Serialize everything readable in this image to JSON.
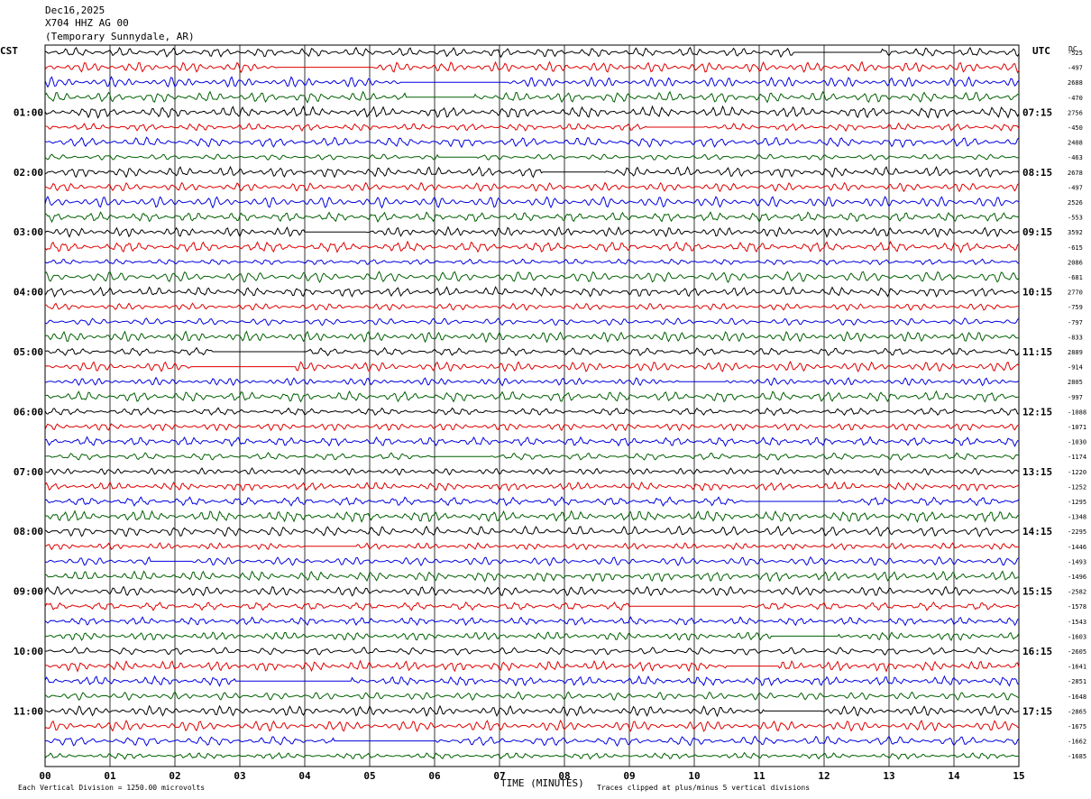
{
  "header": {
    "date": "Dec16,2025",
    "station": "X704 HHZ AG 00",
    "location": "(Temporary Sunnydale, AR)"
  },
  "left_tz": "CST",
  "right_tz": "UTC",
  "dc_label": "DC",
  "footer": {
    "scale_note": "Each Vertical Division = 1250.00 microvolts",
    "clip_note": "Traces clipped at plus/minus 5 vertical divisions"
  },
  "chart_data": {
    "type": "line",
    "title": "X704 HHZ AG 00",
    "xlabel": "TIME (MINUTES)",
    "ylabel": "",
    "x_ticks": [
      "00",
      "01",
      "02",
      "03",
      "04",
      "05",
      "06",
      "07",
      "08",
      "09",
      "10",
      "11",
      "12",
      "13",
      "14",
      "15"
    ],
    "xlim": [
      0,
      15
    ],
    "trace_colors": [
      "#000000",
      "#e00000",
      "#0000e0",
      "#006000"
    ],
    "left_time_labels": [
      "01:00",
      "02:00",
      "03:00",
      "04:00",
      "05:00",
      "06:00",
      "07:00",
      "08:00",
      "09:00",
      "10:00",
      "11:00"
    ],
    "right_time_labels": [
      "07:15",
      "08:15",
      "09:15",
      "10:15",
      "11:15",
      "12:15",
      "13:15",
      "14:15",
      "15:15",
      "16:15",
      "17:15"
    ],
    "label_trace_indices": [
      4,
      8,
      12,
      16,
      20,
      24,
      28,
      32,
      36,
      40,
      44
    ],
    "dc_offsets": [
      "-525",
      "-497",
      "2688",
      "-470",
      "2756",
      "-450",
      "2408",
      "-463",
      "2678",
      "-497",
      "2526",
      "-553",
      "3592",
      "-615",
      "2086",
      "-681",
      "2770",
      "-759",
      "-797",
      "-833",
      "2889",
      "-914",
      "2805",
      "-997",
      "-1088",
      "-1071",
      "-1030",
      "-1174",
      "-1220",
      "-1252",
      "-1295",
      "-1348",
      "-2295",
      "-1446",
      "-1493",
      "-1496",
      "-2582",
      "-1578",
      "-1543",
      "-1603",
      "-2605",
      "-1641",
      "-2851",
      "-1648",
      "-2865",
      "-1675",
      "-1662",
      "-1685"
    ]
  }
}
